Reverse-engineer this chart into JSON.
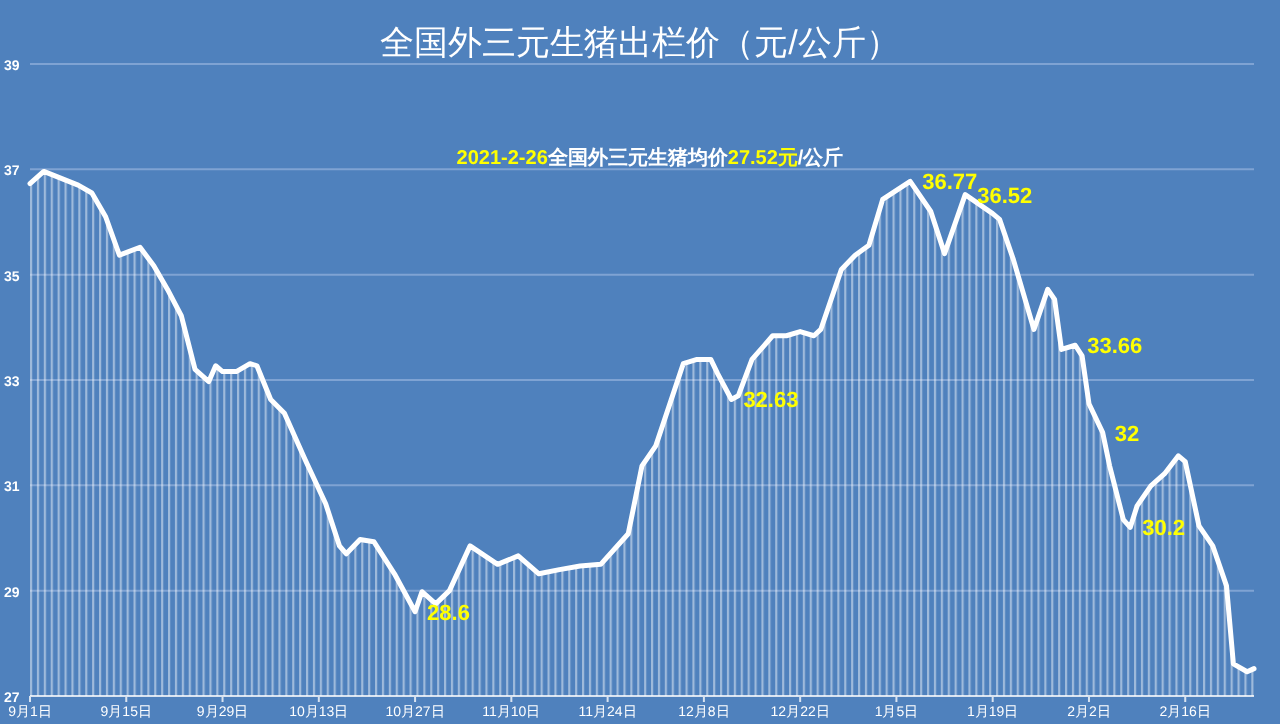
{
  "chart_data": {
    "type": "area",
    "title": "全国外三元生猪出栏价（元/公斤）",
    "subtitle": "2021-2-26全国外三元生猪均价27.52元/公斤",
    "x": [
      "2020-09-01",
      "2020-09-03",
      "2020-09-08",
      "2020-09-10",
      "2020-09-12",
      "2020-09-14",
      "2020-09-17",
      "2020-09-19",
      "2020-09-21",
      "2020-09-23",
      "2020-09-25",
      "2020-09-27",
      "2020-09-28",
      "2020-09-29",
      "2020-10-01",
      "2020-10-03",
      "2020-10-04",
      "2020-10-06",
      "2020-10-08",
      "2020-10-11",
      "2020-10-14",
      "2020-10-16",
      "2020-10-17",
      "2020-10-19",
      "2020-10-21",
      "2020-10-24",
      "2020-10-27",
      "2020-10-28",
      "2020-10-30",
      "2020-11-01",
      "2020-11-04",
      "2020-11-08",
      "2020-11-11",
      "2020-11-14",
      "2020-11-17",
      "2020-11-20",
      "2020-11-23",
      "2020-11-27",
      "2020-11-29",
      "2020-12-01",
      "2020-12-05",
      "2020-12-07",
      "2020-12-09",
      "2020-12-10",
      "2020-12-12",
      "2020-12-13",
      "2020-12-15",
      "2020-12-18",
      "2020-12-20",
      "2020-12-22",
      "2020-12-24",
      "2020-12-25",
      "2020-12-28",
      "2020-12-30",
      "2021-01-01",
      "2021-01-03",
      "2021-01-07",
      "2021-01-10",
      "2021-01-12",
      "2021-01-15",
      "2021-01-19",
      "2021-01-20",
      "2021-01-22",
      "2021-01-25",
      "2021-01-27",
      "2021-01-28",
      "2021-01-29",
      "2021-01-31",
      "2021-02-01",
      "2021-02-02",
      "2021-02-04",
      "2021-02-05",
      "2021-02-07",
      "2021-02-08",
      "2021-02-09",
      "2021-02-11",
      "2021-02-13",
      "2021-02-15",
      "2021-02-16",
      "2021-02-17",
      "2021-02-18",
      "2021-02-20",
      "2021-02-22",
      "2021-02-23",
      "2021-02-25",
      "2021-02-26"
    ],
    "series": [
      {
        "color": "#ffffff",
        "values": [
          36.73,
          36.96,
          36.7,
          36.55,
          36.1,
          35.37,
          35.52,
          35.17,
          34.72,
          34.22,
          33.2,
          32.97,
          33.27,
          33.16,
          33.16,
          33.31,
          33.27,
          32.63,
          32.37,
          31.49,
          30.65,
          29.85,
          29.7,
          29.97,
          29.93,
          29.32,
          28.6,
          28.98,
          28.75,
          29.0,
          29.85,
          29.5,
          29.66,
          29.32,
          29.4,
          29.47,
          29.5,
          30.08,
          31.37,
          31.75,
          33.31,
          33.39,
          33.39,
          33.12,
          32.63,
          32.7,
          33.39,
          33.84,
          33.84,
          33.92,
          33.84,
          33.96,
          35.1,
          35.37,
          35.56,
          36.43,
          36.77,
          36.2,
          35.4,
          36.52,
          36.16,
          36.05,
          35.29,
          33.96,
          34.72,
          34.53,
          33.58,
          33.66,
          33.46,
          32.55,
          32.0,
          31.37,
          30.35,
          30.2,
          30.61,
          30.99,
          31.22,
          31.56,
          31.45,
          30.84,
          30.23,
          29.85,
          29.09,
          27.61,
          27.46,
          27.52
        ]
      }
    ],
    "xlim": [
      "2020-09-01",
      "2021-02-26"
    ],
    "xticks": [
      {
        "value": "2020-09-01",
        "label": "9月1日"
      },
      {
        "value": "2020-09-15",
        "label": "9月15日"
      },
      {
        "value": "2020-09-29",
        "label": "9月29日"
      },
      {
        "value": "2020-10-13",
        "label": "10月13日"
      },
      {
        "value": "2020-10-27",
        "label": "10月27日"
      },
      {
        "value": "2020-11-10",
        "label": "11月10日"
      },
      {
        "value": "2020-11-24",
        "label": "11月24日"
      },
      {
        "value": "2020-12-08",
        "label": "12月8日"
      },
      {
        "value": "2020-12-22",
        "label": "12月22日"
      },
      {
        "value": "2021-01-05",
        "label": "1月5日"
      },
      {
        "value": "2021-01-19",
        "label": "1月19日"
      },
      {
        "value": "2021-02-02",
        "label": "2月2日"
      },
      {
        "value": "2021-02-16",
        "label": "2月16日"
      }
    ],
    "ylim": [
      27,
      39
    ],
    "yticks": [
      27,
      29,
      31,
      33,
      35,
      37,
      39
    ],
    "grid": "y",
    "annotations": [
      {
        "text": "28.6",
        "x": "2020-10-27",
        "y": 28.6
      },
      {
        "text": "32.63",
        "x": "2020-12-12",
        "y": 32.63
      },
      {
        "text": "36.77",
        "x": "2021-01-07",
        "y": 36.77
      },
      {
        "text": "36.52",
        "x": "2021-01-15",
        "y": 36.52
      },
      {
        "text": "33.66",
        "x": "2021-01-31",
        "y": 33.66
      },
      {
        "text": "32",
        "x": "2021-02-04",
        "y": 32
      },
      {
        "text": "30.2",
        "x": "2021-02-08",
        "y": 30.2
      }
    ]
  }
}
